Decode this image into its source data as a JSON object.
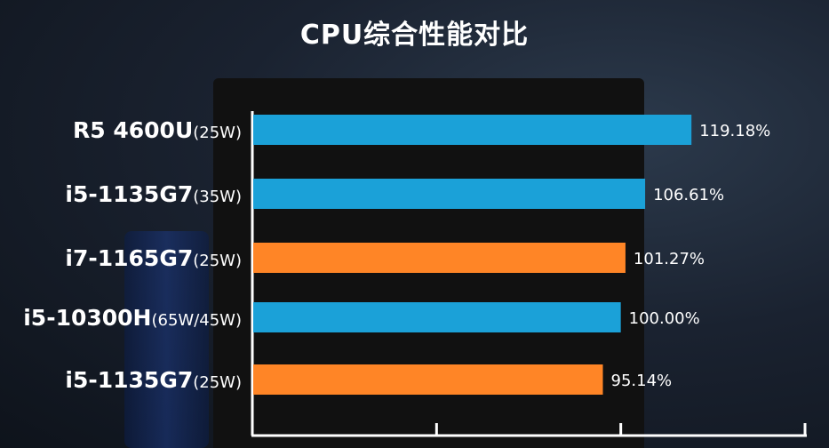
{
  "chart_data": {
    "type": "bar",
    "orientation": "horizontal",
    "title": "CPU综合性能对比",
    "categories": [
      {
        "name": "R5 4600U",
        "suffix": "(25W)"
      },
      {
        "name": "i5-1135G7",
        "suffix": "(35W)"
      },
      {
        "name": "i7-1165G7",
        "suffix": "(25W)"
      },
      {
        "name": "i5-10300H",
        "suffix": "(65W/45W)"
      },
      {
        "name": "i5-1135G7",
        "suffix": "(25W)"
      }
    ],
    "values": [
      119.18,
      106.61,
      101.27,
      100.0,
      95.14
    ],
    "data_labels": [
      "119.18%",
      "106.61%",
      "101.27%",
      "100.00%",
      "95.14%"
    ],
    "bar_colors": [
      "#1ba1d8",
      "#1ba1d8",
      "#ff8526",
      "#1ba1d8",
      "#ff8526"
    ],
    "xlim": [
      0,
      150
    ],
    "x_ticks": [
      0,
      50,
      100,
      150
    ],
    "grid": false
  }
}
